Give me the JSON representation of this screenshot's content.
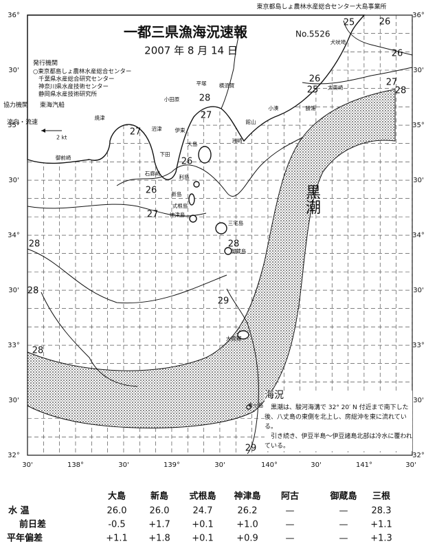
{
  "header": {
    "credit": "東京都島しょ農林水産総合センター大島事業所",
    "title": "一都三県漁海況速報",
    "number": "No.5526",
    "date": "2007 年 8 月 14 日"
  },
  "issuers": {
    "heading": "発行機関",
    "items": [
      "○東京都島しょ農林水産総合センター",
      "千葉県水産総合研究センター",
      "神奈川県水産技術センター",
      "静岡県水産技術研究所"
    ]
  },
  "cooperator": {
    "heading": "協力機関",
    "name": "東海汽船"
  },
  "flow_legend": {
    "label": "流向・流速",
    "scale": "2 kt"
  },
  "lat_labels": [
    "36°",
    "30'",
    "35°",
    "30'",
    "34°",
    "30'",
    "33°",
    "30'",
    "32°"
  ],
  "lon_labels": [
    "30'",
    "138°",
    "30'",
    "139°",
    "30'",
    "140°",
    "30'",
    "141°",
    "30'"
  ],
  "kuroshio_label": "黒潮",
  "isotherm_labels": [
    "25",
    "26",
    "26",
    "26",
    "25",
    "27",
    "28",
    "28",
    "27",
    "27",
    "26",
    "26",
    "27",
    "28",
    "28",
    "28",
    "29",
    "28",
    "29"
  ],
  "place_names": [
    "犬吠埼",
    "太東崎",
    "勝浦",
    "小湊",
    "館山",
    "洲崎",
    "平塚",
    "横須賀",
    "小田原",
    "伊東",
    "沼津",
    "下田",
    "石廊崎",
    "焼津",
    "御前崎",
    "大島",
    "利島",
    "新島",
    "式根島",
    "神津島",
    "三宅島",
    "御蔵島",
    "大賀郷",
    "青ヶ島"
  ],
  "conditions": {
    "heading": "海況",
    "paragraphs": [
      "黒潮は、駿河海溝で 32° 20′ N 付近まで南下した後、八丈島の東側を北上し、房総沖を東に流れている。",
      "引き続き、伊豆半島～伊豆諸島北部は冷水に覆われている。"
    ]
  },
  "table": {
    "columns": [
      "大島",
      "新島",
      "式根島",
      "神津島",
      "阿古",
      "御蔵島",
      "三根"
    ],
    "rows": [
      {
        "label": "水 温",
        "cells": [
          "26.0",
          "26.0",
          "24.7",
          "26.2",
          "—",
          "—",
          "28.3"
        ]
      },
      {
        "label": "前日差",
        "cells": [
          "-0.5",
          "+1.7",
          "+0.1",
          "+1.0",
          "—",
          "—",
          "+1.1"
        ]
      },
      {
        "label": "平年偏差",
        "cells": [
          "+1.1",
          "+1.8",
          "+0.1",
          "+0.9",
          "—",
          "—",
          "+1.3"
        ]
      }
    ]
  }
}
